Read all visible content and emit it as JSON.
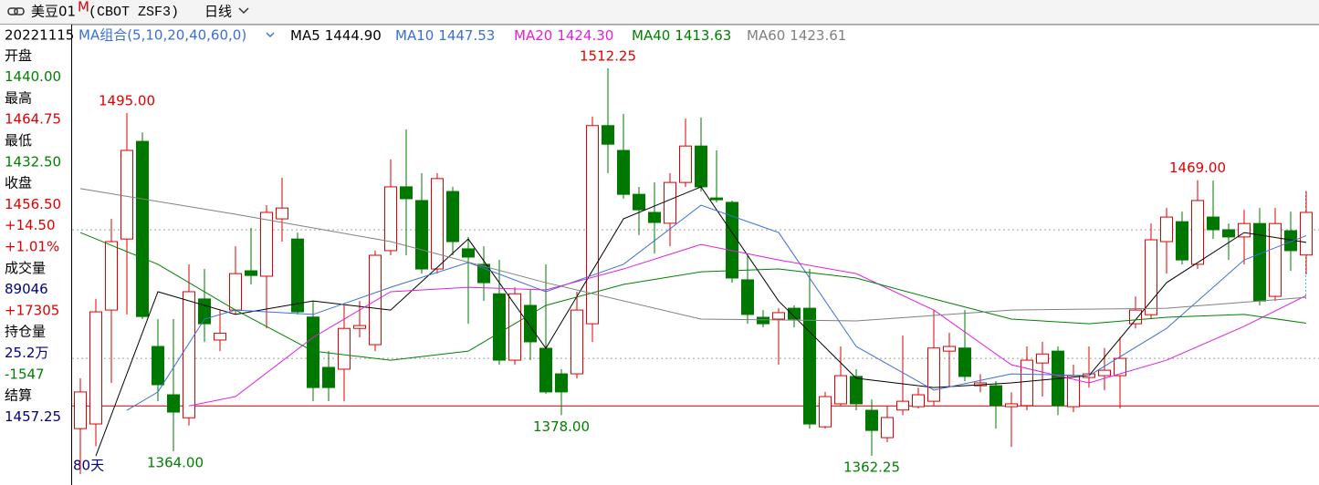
{
  "header": {
    "symbol": "美豆01",
    "marker": "M",
    "code": "(CBOT ZSF3)",
    "period": "日线"
  },
  "info_panel": [
    {
      "text": "20221115",
      "color": "#000000",
      "small": true
    },
    {
      "text": "开盘",
      "color": "#000000"
    },
    {
      "text": "1440.00",
      "color": "#008000"
    },
    {
      "text": "最高",
      "color": "#000000"
    },
    {
      "text": "1464.75",
      "color": "#e00000"
    },
    {
      "text": "最低",
      "color": "#000000"
    },
    {
      "text": "1432.50",
      "color": "#008000"
    },
    {
      "text": "收盘",
      "color": "#000000"
    },
    {
      "text": "1456.50",
      "color": "#e00000"
    },
    {
      "text": "+14.50",
      "color": "#e00000"
    },
    {
      "text": "+1.01%",
      "color": "#e00000"
    },
    {
      "text": "成交量",
      "color": "#000000"
    },
    {
      "text": "89046",
      "color": "#000080"
    },
    {
      "text": "+17305",
      "color": "#e00000"
    },
    {
      "text": "持仓量",
      "color": "#000000"
    },
    {
      "text": "25.2万",
      "color": "#000080"
    },
    {
      "text": "-1547",
      "color": "#008000"
    },
    {
      "text": "结算",
      "color": "#000000"
    },
    {
      "text": "1457.25",
      "color": "#000080"
    }
  ],
  "chart_data": {
    "type": "candlestick",
    "ma_group": "MA组合(5,10,20,40,60,0)",
    "span_label": "80天",
    "ylim": [
      1354.5,
      1529.2
    ],
    "grid_lines": [
      1400,
      1449.75
    ],
    "ref_line": 1381.6,
    "up_color": "#e00000",
    "down_color": "#007800",
    "open": [
      1372.8,
      1374.6,
      1418.7,
      1446.2,
      1484,
      1404.6,
      1385.9,
      1377,
      1423,
      1407.1,
      1418.7,
      1433.9,
      1431.8,
      1454,
      1446.2,
      1416,
      1396.5,
      1395.8,
      1411.6,
      1405.3,
      1441.7,
      1466.4,
      1461.1,
      1434.6,
      1464.6,
      1442.4,
      1436.4,
      1425,
      1399.3,
      1420.5,
      1403.9,
      1394,
      1394,
      1413.4,
      1490.1,
      1480.5,
      1463.5,
      1456.5,
      1452.3,
      1468.1,
      1482.2,
      1462.1,
      1460.4,
      1430.4,
      1415.9,
      1415.2,
      1419.4,
      1419.4,
      1373.5,
      1382.4,
      1393,
      1379.9,
      1369.3,
      1380,
      1381.3,
      1383.4,
      1402.8,
      1404,
      1389.4,
      1389.4,
      1381.3,
      1381.7,
      1398.2,
      1402.8,
      1381.3,
      1392.6,
      1393.3,
      1393.3,
      1413.4,
      1416.9,
      1445.2,
      1452.9,
      1436.4,
      1454.7,
      1449.8,
      1447,
      1452.2,
      1424,
      1449.4,
      1440
    ],
    "high": [
      1392.3,
      1423,
      1454,
      1495,
      1487.5,
      1415.2,
      1415.2,
      1436.4,
      1434.6,
      1418.7,
      1443.4,
      1450.5,
      1459.3,
      1469.9,
      1448.7,
      1422.2,
      1402.8,
      1420.5,
      1422.2,
      1441.7,
      1477,
      1488.6,
      1471.7,
      1471.7,
      1466.4,
      1447,
      1443.4,
      1438.1,
      1427.5,
      1426.5,
      1436.4,
      1395.8,
      1425.8,
      1493.6,
      1512.25,
      1494.6,
      1466.4,
      1468.1,
      1471.7,
      1492.8,
      1493.2,
      1480.5,
      1461.1,
      1439.9,
      1418.7,
      1419.4,
      1420.5,
      1434.6,
      1387,
      1404.6,
      1395.8,
      1384.1,
      1381.7,
      1408.8,
      1388.7,
      1418.7,
      1409.9,
      1418.7,
      1393.9,
      1391.2,
      1386.9,
      1404.6,
      1406.4,
      1404.6,
      1397.5,
      1404.6,
      1404,
      1408.1,
      1424,
      1452.2,
      1458.2,
      1456.8,
      1469,
      1468.8,
      1452.2,
      1457.5,
      1458.2,
      1458.2,
      1456.8,
      1464.75
    ],
    "low": [
      1355.2,
      1366,
      1390.5,
      1417,
      1415.2,
      1383.4,
      1364,
      1374,
      1406.4,
      1402.8,
      1417,
      1428.6,
      1411.6,
      1445.2,
      1417,
      1383.4,
      1383.4,
      1383.4,
      1408.1,
      1402.8,
      1439.9,
      1439.9,
      1432.8,
      1432.8,
      1439.9,
      1413.4,
      1422.2,
      1397.5,
      1397.5,
      1399.3,
      1386.3,
      1378,
      1392.2,
      1406.4,
      1471.7,
      1461.8,
      1447.7,
      1440.6,
      1443.4,
      1466.4,
      1464.6,
      1460.4,
      1429.3,
      1413.4,
      1412,
      1397.5,
      1412,
      1372.8,
      1372.8,
      1381.7,
      1379.9,
      1362.25,
      1367.5,
      1378,
      1380.6,
      1381.7,
      1388.7,
      1391.2,
      1386.9,
      1372.8,
      1365.7,
      1379.9,
      1385.2,
      1378,
      1379.2,
      1388.7,
      1387.7,
      1380.6,
      1411.6,
      1415.2,
      1432.8,
      1436.4,
      1434.6,
      1446.2,
      1438.1,
      1436.4,
      1420.5,
      1422.2,
      1433.9,
      1432.5
    ],
    "close": [
      1387,
      1418,
      1445.2,
      1480.5,
      1416.2,
      1389.8,
      1379.2,
      1425.8,
      1413.4,
      1409.7,
      1432.8,
      1432.1,
      1456.5,
      1458.2,
      1418,
      1388.7,
      1388.7,
      1411.6,
      1412.7,
      1439.9,
      1466.4,
      1461.8,
      1434.6,
      1469.6,
      1445.2,
      1439.2,
      1429.3,
      1399.3,
      1425,
      1406.4,
      1387,
      1387,
      1418.7,
      1490.1,
      1482.9,
      1463.5,
      1457.5,
      1452.6,
      1468.1,
      1482.2,
      1466.4,
      1461.4,
      1431.1,
      1417,
      1413.4,
      1417.7,
      1415.2,
      1374.6,
      1385.2,
      1393.3,
      1382.4,
      1372.1,
      1377.1,
      1383.4,
      1385.9,
      1404,
      1404.6,
      1393,
      1390.5,
      1381.7,
      1382.4,
      1399.3,
      1401.7,
      1381.7,
      1393.3,
      1394,
      1395.4,
      1400,
      1418.7,
      1445.9,
      1454.7,
      1438.1,
      1461.1,
      1449.8,
      1447,
      1452.2,
      1422.2,
      1452.2,
      1441.7,
      1456.5
    ],
    "series": [
      {
        "name": "MA5",
        "color": "#000000",
        "last": {
          "value": 1444.9,
          "label": "1444.90"
        },
        "x": [
          1,
          5,
          10,
          15,
          20,
          25,
          30,
          35,
          40,
          45,
          50,
          55,
          60,
          65,
          70,
          75,
          79
        ],
        "values": [
          1362.2,
          1425.8,
          1417,
          1422.2,
          1418.7,
          1446.2,
          1403.9,
          1454,
          1466.4,
          1422.2,
          1392.3,
          1388.7,
          1390.5,
          1393.3,
          1429.3,
          1448.7,
          1444.9
        ]
      },
      {
        "name": "MA10",
        "color": "#3a6fd8",
        "last": {
          "value": 1447.53,
          "label": "1447.53"
        },
        "x": [
          3,
          5,
          8,
          10,
          15,
          20,
          25,
          30,
          35,
          40,
          45,
          50,
          55,
          60,
          65,
          70,
          75,
          79
        ],
        "values": [
          1379.9,
          1387,
          1415.2,
          1418.7,
          1417,
          1427.5,
          1437.1,
          1425.8,
          1436.4,
          1459.3,
          1448.7,
          1404.6,
          1387.7,
          1394,
          1393.3,
          1411.6,
          1438.1,
          1447.53
        ]
      },
      {
        "name": "MA20",
        "color": "#e020e0",
        "last": {
          "value": 1424.3,
          "label": "1424.30"
        },
        "x": [
          7,
          10,
          15,
          20,
          25,
          30,
          35,
          40,
          45,
          50,
          55,
          60,
          65,
          70,
          75,
          79
        ],
        "values": [
          1381.6,
          1385.2,
          1408.1,
          1425.8,
          1427.5,
          1426.5,
          1434.6,
          1444.1,
          1438.1,
          1432.8,
          1418.7,
          1397.5,
          1390.5,
          1399.3,
          1412.4,
          1424.3
        ]
      },
      {
        "name": "MA40",
        "color": "#008000",
        "last": {
          "value": 1413.63,
          "label": "1413.63"
        },
        "x": [
          0,
          5,
          10,
          15,
          20,
          25,
          30,
          35,
          40,
          45,
          50,
          55,
          60,
          65,
          70,
          75,
          79
        ],
        "values": [
          1448.7,
          1436.4,
          1418.7,
          1402.8,
          1399.3,
          1402.8,
          1420.5,
          1428.6,
          1433.5,
          1434.6,
          1431.1,
          1423,
          1415.2,
          1413.4,
          1415.9,
          1417,
          1413.63
        ]
      },
      {
        "name": "MA60",
        "color": "#808080",
        "last": {
          "value": 1423.61,
          "label": "1423.61"
        },
        "x": [
          0,
          10,
          20,
          30,
          40,
          50,
          60,
          70,
          79
        ],
        "values": [
          1465.7,
          1455.8,
          1445.2,
          1429.3,
          1415.2,
          1414.5,
          1418.7,
          1419.4,
          1423.61
        ]
      }
    ],
    "annotations": [
      {
        "index": 3,
        "value": 1495,
        "label": "1495.00",
        "position": "above",
        "color": "#e00000"
      },
      {
        "index": 34,
        "value": 1512.25,
        "label": "1512.25",
        "position": "above",
        "color": "#e00000"
      },
      {
        "index": 72,
        "value": 1469,
        "label": "1469.00",
        "position": "above",
        "color": "#e00000"
      },
      {
        "index": 6,
        "value": 1364,
        "label": "1364.00",
        "position": "below",
        "color": "#008000"
      },
      {
        "index": 31,
        "value": 1378,
        "label": "1378.00",
        "position": "below",
        "color": "#008000"
      },
      {
        "index": 51,
        "value": 1362.25,
        "label": "1362.25",
        "position": "below",
        "color": "#008000"
      }
    ]
  }
}
